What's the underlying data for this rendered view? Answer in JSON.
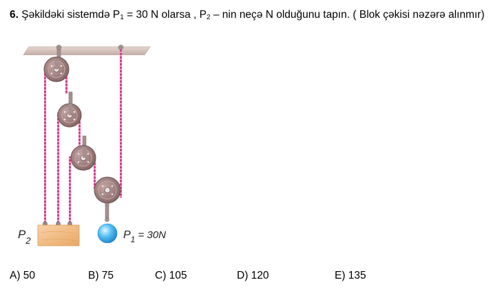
{
  "question": {
    "number": "6.",
    "text_part1": " Şəkildəki sistemdə P",
    "sub1": "1",
    "text_part2": " = 30 N olarsa , P",
    "sub2": "2",
    "text_part3": " – nin neçə N olduğunu tapın. ( Blok çəkisi nəzərə alınmır)"
  },
  "figure": {
    "p2_letter": "P",
    "p2_sub": "2",
    "p1_letter": "P",
    "p1_sub": "1",
    "p1_value": " = 30N"
  },
  "options": [
    {
      "label": "A) 50"
    },
    {
      "label": "B) 75"
    },
    {
      "label": "C) 105"
    },
    {
      "label": "D) 120"
    },
    {
      "label": "E) 135"
    }
  ],
  "colors": {
    "rope": "#d63a8c",
    "pulley": "#9b7a79",
    "ceiling": "#d7c3bd",
    "block": "#f3c28f",
    "ball": "#4bb7ef"
  }
}
